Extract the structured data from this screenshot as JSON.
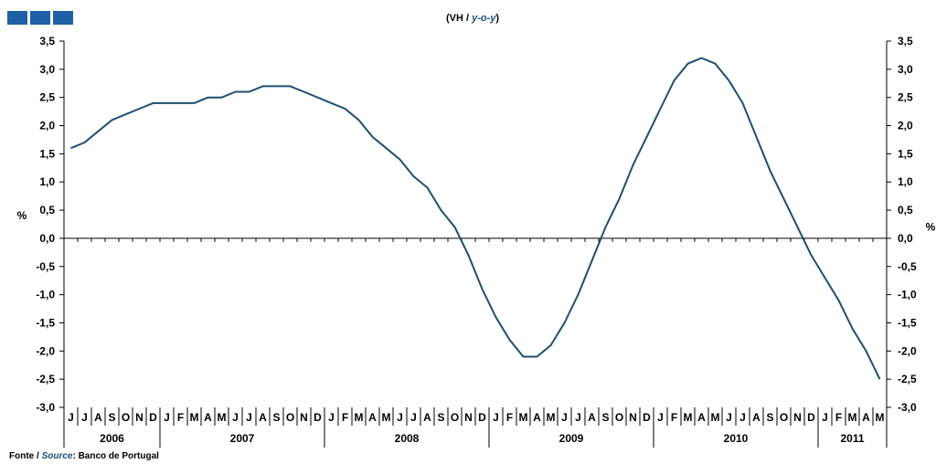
{
  "header": {
    "unit_prefix": "(VH / ",
    "unit_en": "y-o-y",
    "unit_suffix": ")"
  },
  "source": {
    "prefix": "Fonte / ",
    "en": "Source",
    "rest": ": Banco de Portugal"
  },
  "colors": {
    "line": "#1f4e6e",
    "brand_squares": "#1f5fa6"
  },
  "chart_data": {
    "type": "line",
    "title": "",
    "ylabel": "%",
    "y2label": "%",
    "ylim": [
      -3.0,
      3.5
    ],
    "ytick_step": 0.5,
    "ytick_labels": [
      "3,5",
      "3,0",
      "2,5",
      "2,0",
      "1,5",
      "1,0",
      "0,5",
      "0,0",
      "-0,5",
      "-1,0",
      "-1,5",
      "-2,0",
      "-2,5",
      "-3,0"
    ],
    "month_labels": [
      "J",
      "J",
      "A",
      "S",
      "O",
      "N",
      "D",
      "J",
      "F",
      "M",
      "A",
      "M",
      "J",
      "J",
      "A",
      "S",
      "O",
      "N",
      "D",
      "J",
      "F",
      "M",
      "A",
      "M",
      "J",
      "J",
      "A",
      "S",
      "O",
      "N",
      "D",
      "J",
      "F",
      "M",
      "A",
      "M",
      "J",
      "J",
      "A",
      "S",
      "O",
      "N",
      "D",
      "J",
      "F",
      "M",
      "A",
      "M",
      "J",
      "J",
      "A",
      "S",
      "O",
      "N",
      "D",
      "J",
      "F",
      "M",
      "A",
      "M"
    ],
    "years": [
      {
        "label": "2006",
        "months": 7
      },
      {
        "label": "2007",
        "months": 12
      },
      {
        "label": "2008",
        "months": 12
      },
      {
        "label": "2009",
        "months": 12
      },
      {
        "label": "2010",
        "months": 12
      },
      {
        "label": "2011",
        "months": 5
      }
    ],
    "series": [
      {
        "values": [
          1.6,
          1.7,
          1.9,
          2.1,
          2.2,
          2.3,
          2.4,
          2.4,
          2.4,
          2.4,
          2.5,
          2.5,
          2.6,
          2.6,
          2.7,
          2.7,
          2.7,
          2.6,
          2.5,
          2.4,
          2.3,
          2.1,
          1.8,
          1.6,
          1.4,
          1.1,
          0.9,
          0.5,
          0.2,
          -0.3,
          -0.9,
          -1.4,
          -1.8,
          -2.1,
          -2.1,
          -1.9,
          -1.5,
          -1.0,
          -0.4,
          0.2,
          0.7,
          1.3,
          1.8,
          2.3,
          2.8,
          3.1,
          3.2,
          3.1,
          2.8,
          2.4,
          1.8,
          1.2,
          0.7,
          0.2,
          -0.3,
          -0.7,
          -1.1,
          -1.6,
          -2.0,
          -2.5
        ]
      }
    ]
  }
}
